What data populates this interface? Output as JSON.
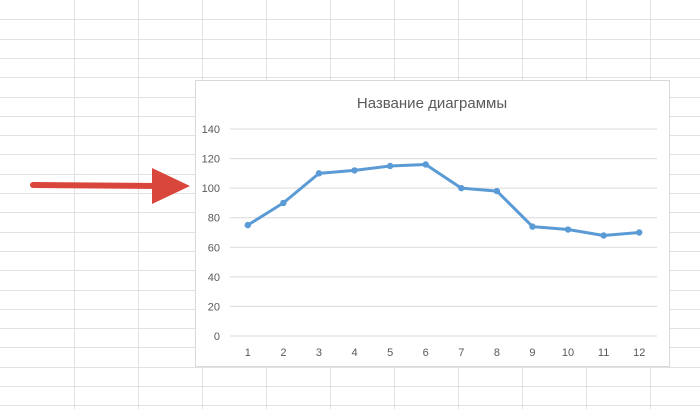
{
  "chart_data": {
    "type": "line",
    "title": "Название диаграммы",
    "xlabel": "",
    "ylabel": "",
    "categories": [
      "1",
      "2",
      "3",
      "4",
      "5",
      "6",
      "7",
      "8",
      "9",
      "10",
      "11",
      "12"
    ],
    "series": [
      {
        "values": [
          75,
          90,
          110,
          112,
          115,
          116,
          100,
          98,
          74,
          72,
          68,
          70
        ]
      }
    ],
    "ylim": [
      0,
      140
    ],
    "y_ticks": [
      "0",
      "20",
      "40",
      "60",
      "80",
      "100",
      "120",
      "140"
    ],
    "grid": true,
    "legend": "none"
  },
  "colors": {
    "series": "#5b9bd5",
    "arrow": "#d9463b",
    "sheet_grid": "#e1e1e1",
    "chart_grid": "#d9d9d9",
    "text": "#595959"
  },
  "annotation": {
    "arrow_icon": "red-right-arrow-icon"
  }
}
